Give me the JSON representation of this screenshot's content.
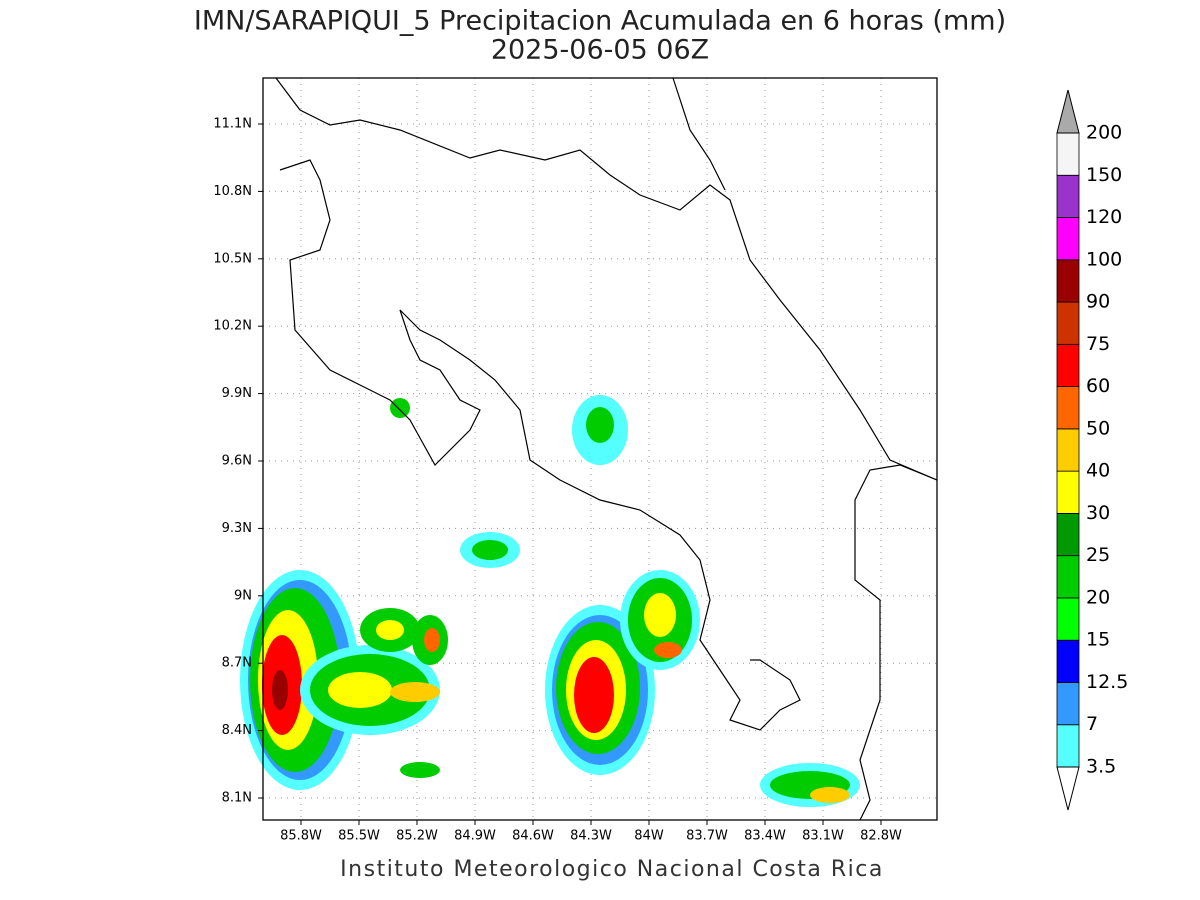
{
  "title": "IMN/SARAPIQUI_5 Precipitacion Acumulada en 6 horas (mm)",
  "subtitle": "2025-06-05 06Z",
  "lat_labels": [
    "11.1N",
    "10.8N",
    "10.5N",
    "10.2N",
    "9.9N",
    "9.6N",
    "9.3N",
    "9N",
    "8.7N",
    "8.4N",
    "8.1N"
  ],
  "lon_labels": [
    "85.8W",
    "85.5W",
    "85.2W",
    "84.9W",
    "84.6W",
    "84.3W",
    "84W",
    "83.7W",
    "83.4W",
    "83.1W",
    "82.8W"
  ],
  "colorbar": {
    "levels": [
      3.5,
      7,
      12.5,
      15,
      20,
      25,
      30,
      40,
      50,
      60,
      75,
      90,
      100,
      120,
      150,
      200
    ],
    "colors": [
      "#55ffff",
      "#3399ff",
      "#0000ff",
      "#00ff00",
      "#00cc00",
      "#009900",
      "#ffff00",
      "#ffcc00",
      "#ff6600",
      "#ff0000",
      "#cc3300",
      "#990000",
      "#ff00ff",
      "#9933cc",
      "#f5f5f5"
    ],
    "under_color": "#ffffff",
    "over_color": "#aaaaaa"
  },
  "footer": "Instituto Meteorologico Nacional Costa Rica"
}
